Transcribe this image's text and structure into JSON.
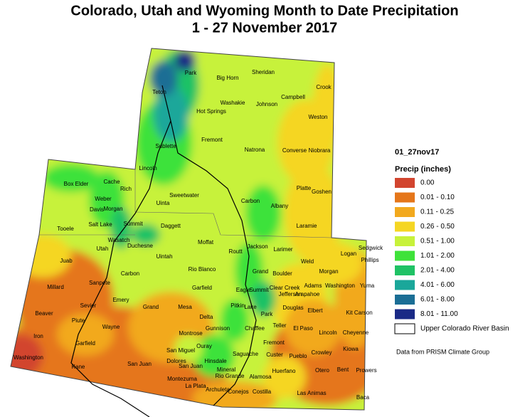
{
  "title": "Colorado, Utah and Wyoming Month to Date Precipitation",
  "subtitle": "1 - 27 November 2017",
  "legend": {
    "title": "01_27nov17",
    "subtitle": "Precip (inches)",
    "items": [
      {
        "label": "0.00",
        "color": "#d2452f"
      },
      {
        "label": "0.01 - 0.10",
        "color": "#e5761a"
      },
      {
        "label": "0.11 - 0.25",
        "color": "#f2a91e"
      },
      {
        "label": "0.26 - 0.50",
        "color": "#f5d623"
      },
      {
        "label": "0.51 - 1.00",
        "color": "#c7f23a"
      },
      {
        "label": "1.01 - 2.00",
        "color": "#3ee23a"
      },
      {
        "label": "2.01 - 4.00",
        "color": "#1fc265"
      },
      {
        "label": "4.01 - 6.00",
        "color": "#1aa79a"
      },
      {
        "label": "6.01 - 8.00",
        "color": "#1a6e95"
      },
      {
        "label": "8.01 - 11.00",
        "color": "#1a2a86"
      },
      {
        "label": "Upper Colorado River Basin",
        "color": "#ffffff"
      }
    ]
  },
  "source": "Data from PRISM Climate Group",
  "counties": [
    "Park",
    "Big Horn",
    "Sheridan",
    "Crook",
    "Teton",
    "Washakie",
    "Johnson",
    "Campbell",
    "Hot Springs",
    "Weston",
    "Fremont",
    "Sublette",
    "Natrona",
    "Converse",
    "Niobrara",
    "Lincoln",
    "Platte",
    "Goshen",
    "Sweetwater",
    "Carbon",
    "Albany",
    "Laramie",
    "Uinta",
    "Box Elder",
    "Cache",
    "Rich",
    "Weber",
    "Davis",
    "Morgan",
    "Tooele",
    "Salt Lake",
    "Summit",
    "Daggett",
    "Wasatch",
    "Duchesne",
    "Utah",
    "Uintah",
    "Juab",
    "Carbon",
    "Sanpete",
    "Millard",
    "Emery",
    "Sevier",
    "Grand",
    "Beaver",
    "Piute",
    "Wayne",
    "Iron",
    "Garfield",
    "Washington",
    "Kane",
    "San Juan",
    "Moffat",
    "Jackson",
    "Larimer",
    "Routt",
    "Logan",
    "Sedgwick",
    "Phillips",
    "Weld",
    "Rio Blanco",
    "Grand",
    "Morgan",
    "Boulder",
    "Adams",
    "Washington",
    "Yuma",
    "Garfield",
    "Eagle",
    "Summit",
    "Clear Creek",
    "Jefferson",
    "Arapahoe",
    "Mesa",
    "Pitkin",
    "Lake",
    "Douglas",
    "Elbert",
    "Kit Carson",
    "Park",
    "Delta",
    "Gunnison",
    "Chaffee",
    "Teller",
    "El Paso",
    "Lincoln",
    "Cheyenne",
    "Montrose",
    "Fremont",
    "Kiowa",
    "Ouray",
    "Custer",
    "Pueblo",
    "Crowley",
    "San Miguel",
    "Hinsdale",
    "Saguache",
    "Dolores",
    "San Juan",
    "Mineral",
    "Rio Grande",
    "Alamosa",
    "Huerfano",
    "Otero",
    "Bent",
    "Prowers",
    "Montezuma",
    "La Plata",
    "Archuleta",
    "Conejos",
    "Costilla",
    "Las Animas",
    "Baca"
  ]
}
